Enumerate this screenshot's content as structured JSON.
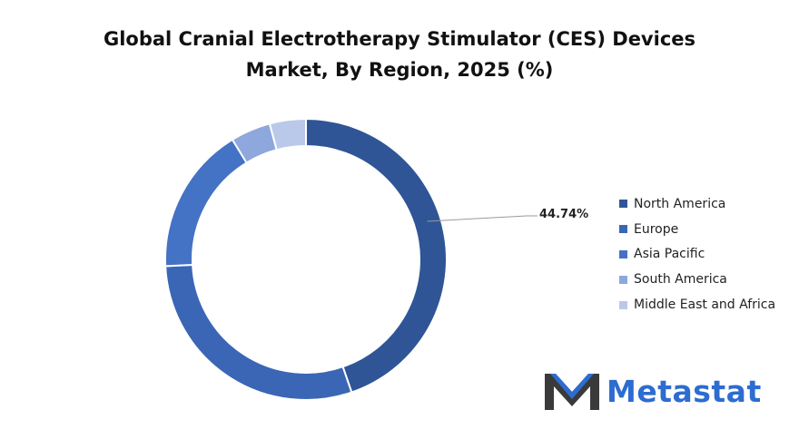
{
  "chart_data": {
    "type": "pie",
    "variant": "donut",
    "title_lines": [
      "Global Cranial Electrotherapy Stimulator (CES) Devices",
      "Market, By Region, 2025 (%)"
    ],
    "categories": [
      "North America",
      "Europe",
      "Asia Pacific",
      "South America",
      "Middle East and Africa"
    ],
    "values": [
      44.74,
      29.5,
      17.0,
      4.6,
      4.16
    ],
    "colors": [
      "#2f5596",
      "#3a66b5",
      "#4472c4",
      "#8ea7dc",
      "#bac9ea"
    ],
    "data_labels": [
      {
        "category": "North America",
        "text": "44.74%"
      }
    ],
    "legend_position": "right"
  },
  "brand": {
    "name": "Metastat",
    "icon": "metastat-m-logo-icon"
  }
}
